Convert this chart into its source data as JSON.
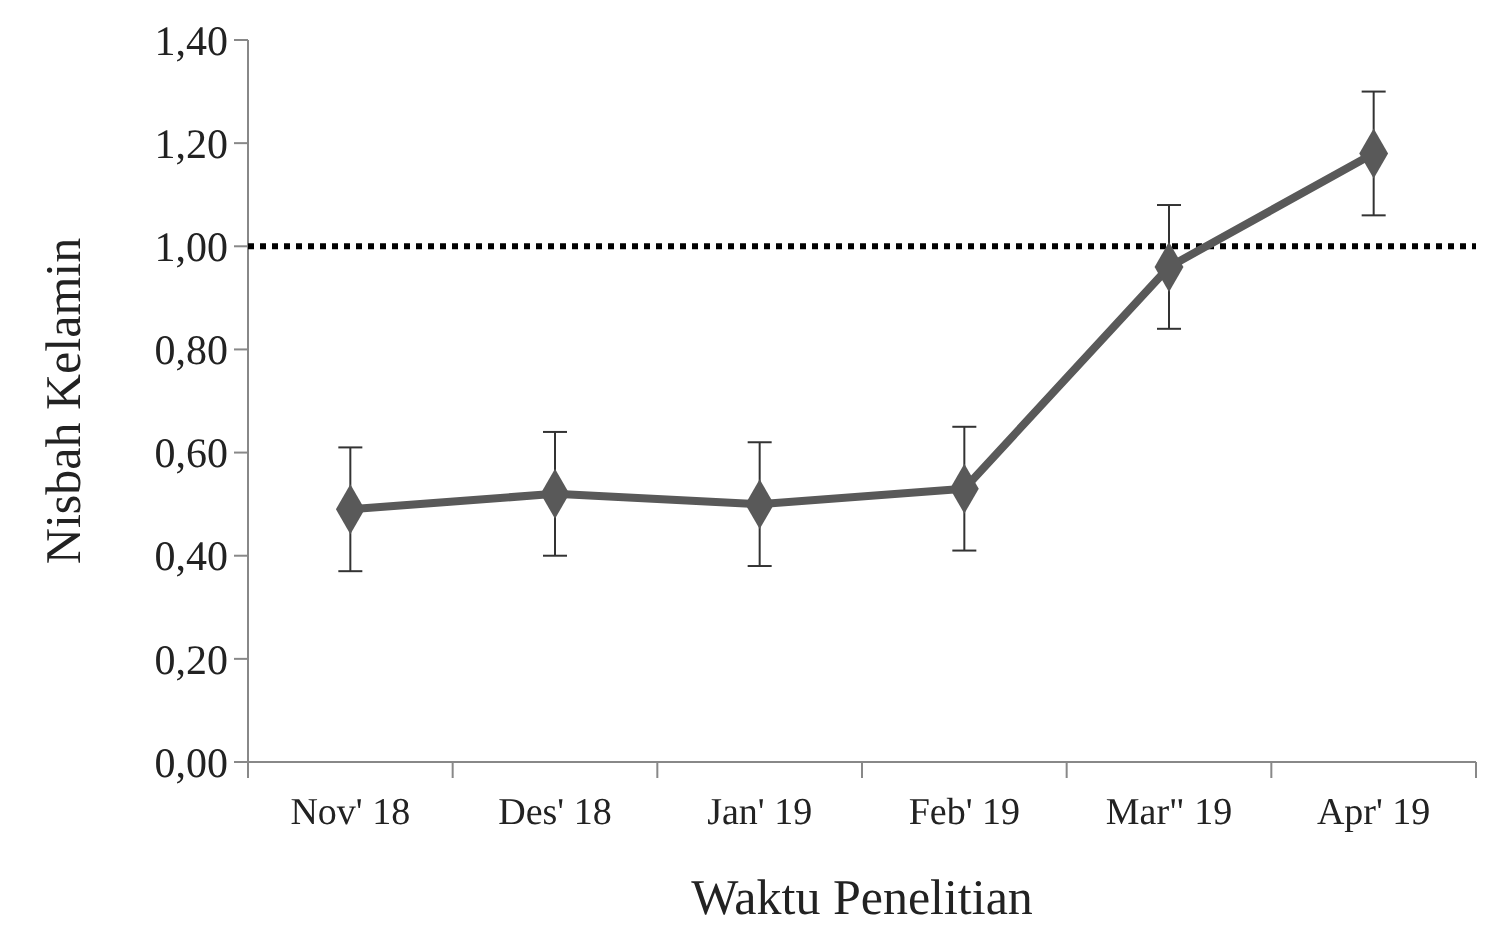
{
  "chart_data": {
    "type": "line",
    "xlabel": "Waktu Penelitian",
    "ylabel": "Nisbah Kelamin",
    "categories": [
      "Nov' 18",
      "Des' 18",
      "Jan' 19",
      "Feb' 19",
      "Mar\" 19",
      "Apr' 19"
    ],
    "series": [
      {
        "color": "#595959",
        "values": [
          0.49,
          0.52,
          0.5,
          0.53,
          0.96,
          1.18
        ],
        "errors": [
          0.12,
          0.12,
          0.12,
          0.12,
          0.12,
          0.12
        ]
      }
    ],
    "ylim": [
      0,
      1.4
    ],
    "yticks": [
      {
        "value": 0,
        "label": "0,00"
      },
      {
        "value": 0.2,
        "label": "0,20"
      },
      {
        "value": 0.4,
        "label": "0,40"
      },
      {
        "value": 0.6,
        "label": "0,60"
      },
      {
        "value": 0.8,
        "label": "0,80"
      },
      {
        "value": 1,
        "label": "1,00"
      },
      {
        "value": 1.2,
        "label": "1,20"
      },
      {
        "value": 1.4,
        "label": "1,40"
      }
    ],
    "ref_lines": [
      {
        "axis": "y",
        "value": 1,
        "color": "#000000",
        "line_style": "dotted"
      }
    ],
    "marker": "diamond",
    "grid": false
  }
}
